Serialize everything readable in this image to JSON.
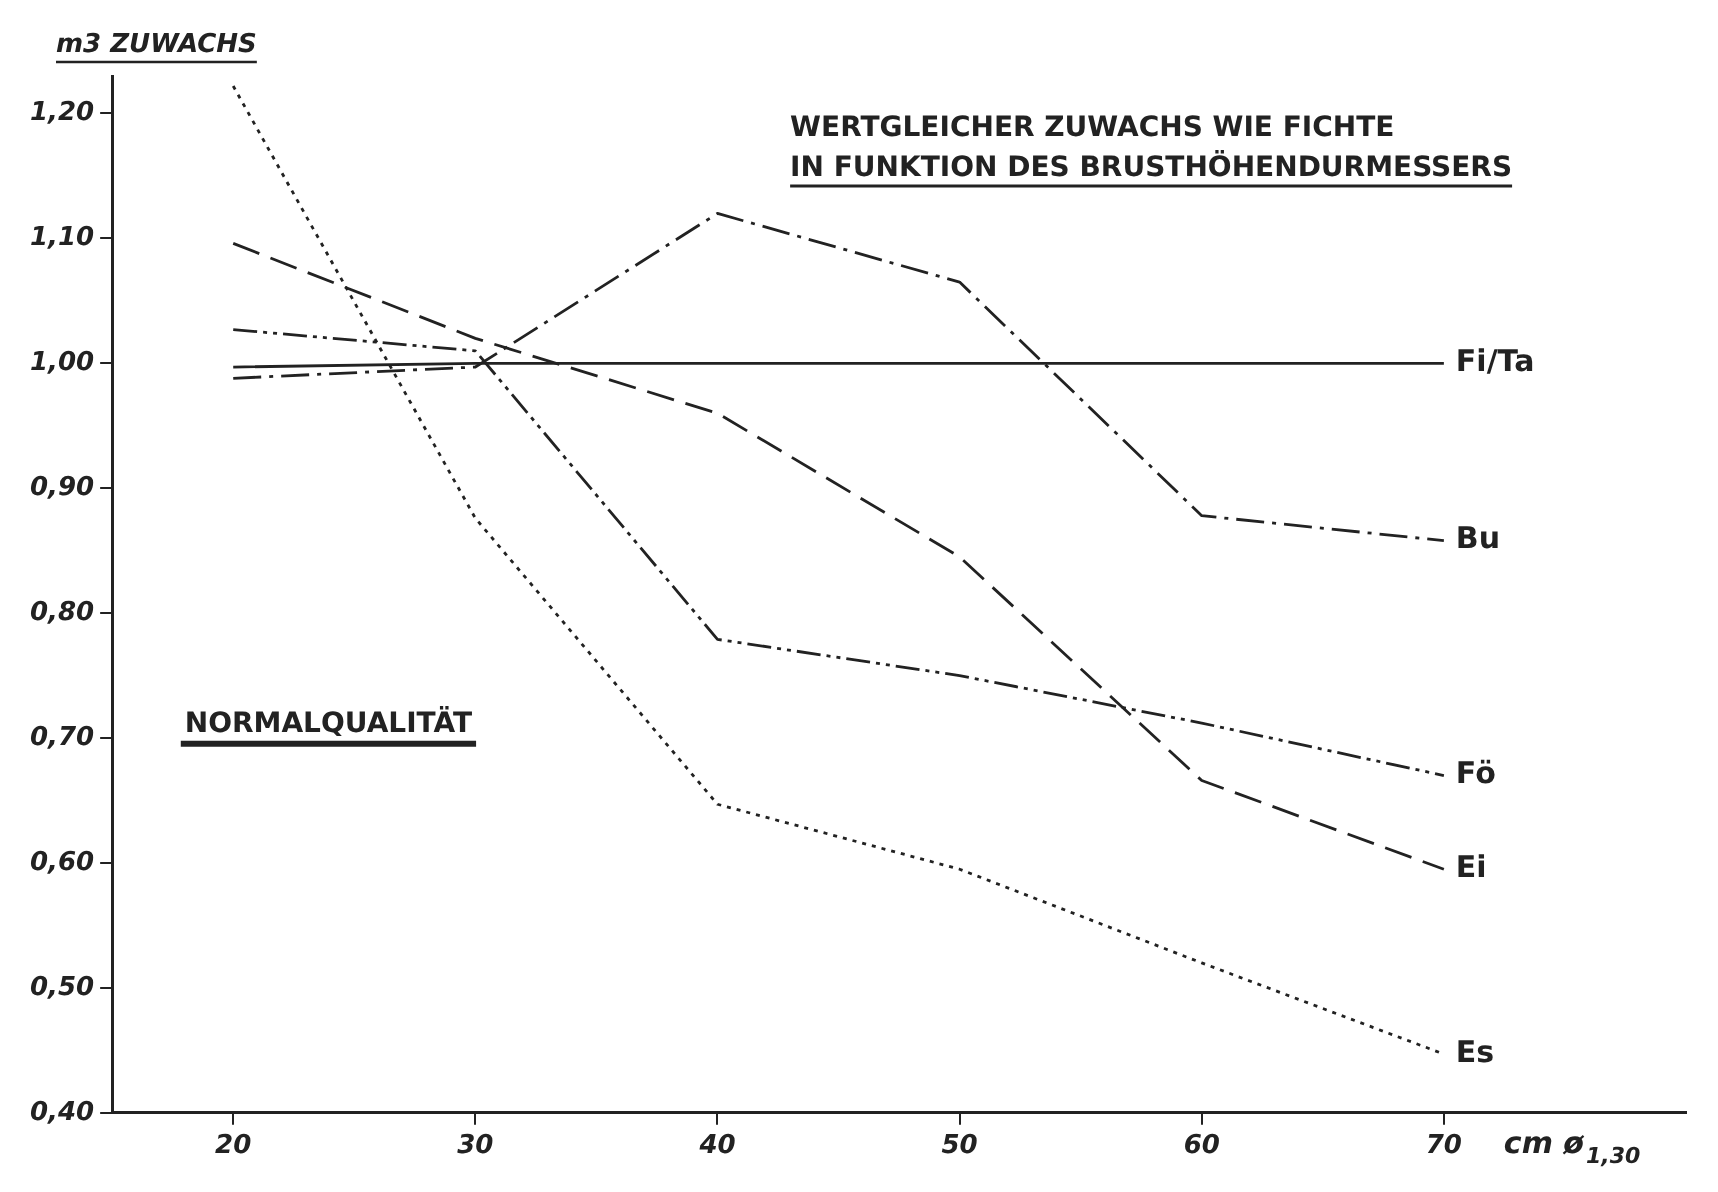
{
  "chart_data": {
    "type": "line",
    "title": "WERTGLEICHER ZUWACHS WIE FICHTE",
    "subtitle": "IN FUNKTION DES BRUSTHÖHENDURMESSERS",
    "ylabel": "m3 ZUWACHS",
    "xlabel": "cm ø$_{1,30}$",
    "annotations": [
      "NORMALQUALITÄT"
    ],
    "x": [
      20,
      30,
      40,
      50,
      60,
      70
    ],
    "series": [
      {
        "name": "Fi/Ta",
        "color": "#222222",
        "line_style": "solid",
        "values": [
          0.997,
          1.0,
          1.0,
          1.0,
          1.0,
          1.0
        ]
      },
      {
        "name": "Bu",
        "color": "#222222",
        "line_style": "dashdot",
        "values": [
          0.988,
          0.997,
          1.12,
          1.065,
          0.878,
          0.858
        ]
      },
      {
        "name": "Fö",
        "color": "#222222",
        "line_style": "dashdotdot",
        "values": [
          1.027,
          1.01,
          0.779,
          0.75,
          0.712,
          0.67
        ]
      },
      {
        "name": "Ei",
        "color": "#222222",
        "line_style": "dashed",
        "values": [
          1.096,
          1.02,
          0.96,
          0.845,
          0.666,
          0.595
        ]
      },
      {
        "name": "Es",
        "color": "#222222",
        "line_style": "dotted",
        "values": [
          1.222,
          0.876,
          0.647,
          0.595,
          0.52,
          0.447
        ]
      }
    ],
    "xlim": [
      15,
      80
    ],
    "xticks": [
      20,
      30,
      40,
      50,
      60,
      70
    ],
    "ylim": [
      0.4,
      1.23
    ],
    "yticks": [
      {
        "value": 0.4,
        "label": "0,40"
      },
      {
        "value": 0.5,
        "label": "0,50"
      },
      {
        "value": 0.6,
        "label": "0,60"
      },
      {
        "value": 0.7,
        "label": "0,70"
      },
      {
        "value": 0.8,
        "label": "0,80"
      },
      {
        "value": 0.9,
        "label": "0,90"
      },
      {
        "value": 1.0,
        "label": "1,00"
      },
      {
        "value": 1.1,
        "label": "1,10"
      },
      {
        "value": 1.2,
        "label": "1,20"
      }
    ],
    "grid": false,
    "legend": false,
    "marker": "none"
  }
}
